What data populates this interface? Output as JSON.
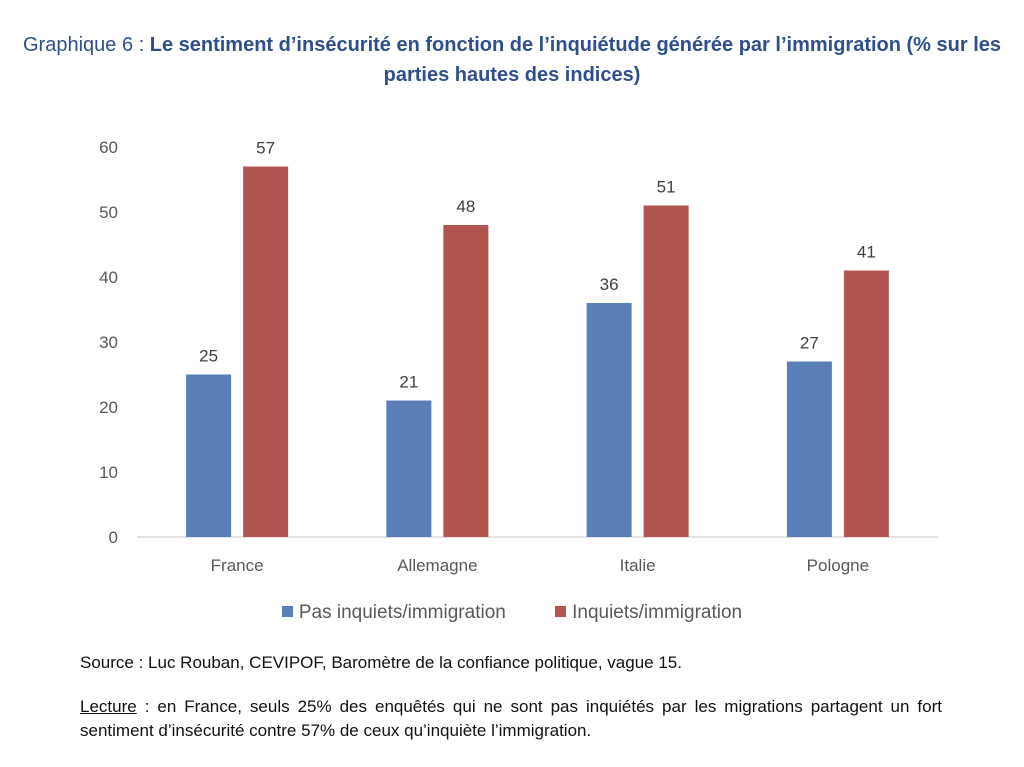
{
  "title": {
    "prefix": "Graphique 6 : ",
    "main": "Le sentiment d’insécurité en fonction de l’inquiétude générée par l’immigration (% sur les parties hautes des indices)"
  },
  "colors": {
    "series_1": "#5a7fb8",
    "series_2": "#b05550",
    "axis": "#d9d9d9",
    "title": "#2f4f8c"
  },
  "chart_data": {
    "type": "bar",
    "title": "Graphique 6 : Le sentiment d’insécurité en fonction de l’inquiétude générée par l’immigration (% sur les parties hautes des indices)",
    "categories": [
      "France",
      "Allemagne",
      "Italie",
      "Pologne"
    ],
    "series": [
      {
        "name": "Pas inquiets/immigration",
        "values": [
          25,
          21,
          36,
          27
        ]
      },
      {
        "name": "Inquiets/immigration",
        "values": [
          57,
          48,
          51,
          41
        ]
      }
    ],
    "xlabel": "",
    "ylabel": "",
    "ylim": [
      0,
      60
    ],
    "yticks": [
      0,
      10,
      20,
      30,
      40,
      50,
      60
    ],
    "grid": false,
    "legend": "bottom",
    "data_labels": true
  },
  "legend": [
    {
      "label": "Pas inquiets/immigration"
    },
    {
      "label": "Inquiets/immigration"
    }
  ],
  "source": "Source : Luc Rouban, CEVIPOF, Baromètre de la confiance politique, vague 15.",
  "lecture": {
    "label": "Lecture",
    "text": " : en France, seuls 25% des enquêtés qui ne sont pas inquiétés par les migrations partagent un fort sentiment d’insécurité contre 57% de ceux qu’inquiète l’immigration."
  }
}
